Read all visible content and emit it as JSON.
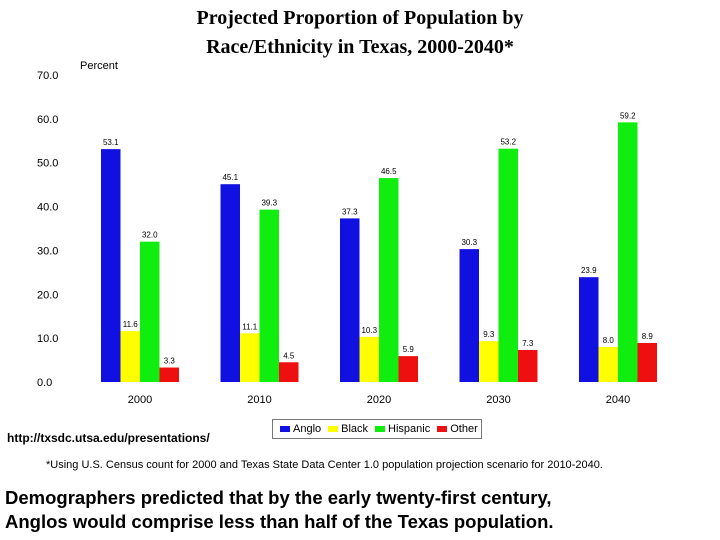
{
  "title_line1": "Projected Proportion of Population by",
  "title_line2": "Race/Ethnicity in Texas, 2000-2040*",
  "source_url": "http://txsdc.utsa.edu/presentations/",
  "footnote": "*Using U.S. Census count for 2000 and Texas State Data Center 1.0 population projection scenario for 2010-2040.",
  "caption_line1": "Demographers predicted that by the early twenty-first century,",
  "caption_line2": "Anglos would comprise less than half of the Texas population.",
  "chart_data": {
    "type": "bar",
    "title": "Projected Proportion of Population by Race/Ethnicity in Texas, 2000-2040*",
    "ylabel": "Percent",
    "xlabel": "",
    "ylim": [
      0,
      70
    ],
    "yticks": [
      0,
      10,
      20,
      30,
      40,
      50,
      60,
      70
    ],
    "ytick_labels": [
      "0.0",
      "10.0",
      "20.0",
      "30.0",
      "40.0",
      "50.0",
      "60.0",
      "70.0"
    ],
    "grid": false,
    "legend_position": "bottom",
    "categories": [
      "2000",
      "2010",
      "2020",
      "2030",
      "2040"
    ],
    "series": [
      {
        "name": "Anglo",
        "color": "#1010e0",
        "values": [
          53.1,
          45.1,
          37.3,
          30.3,
          23.9
        ],
        "labels": [
          "53.1",
          "45.1",
          "37.3",
          "30.3",
          "23.9"
        ]
      },
      {
        "name": "Black",
        "color": "#ffff00",
        "values": [
          11.6,
          11.1,
          10.3,
          9.3,
          8.0
        ],
        "labels": [
          "11.6",
          "11.1",
          "10.3",
          "9.3",
          "8.0"
        ]
      },
      {
        "name": "Hispanic",
        "color": "#10ee10",
        "values": [
          32.0,
          39.3,
          46.5,
          53.2,
          59.2
        ],
        "labels": [
          "32.0",
          "39.3",
          "46.5",
          "53.2",
          "59.2"
        ]
      },
      {
        "name": "Other",
        "color": "#ee1010",
        "values": [
          3.3,
          4.5,
          5.9,
          7.3,
          8.9
        ],
        "labels": [
          "3.3",
          "4.5",
          "5.9",
          "7.3",
          "8.9"
        ]
      }
    ]
  }
}
